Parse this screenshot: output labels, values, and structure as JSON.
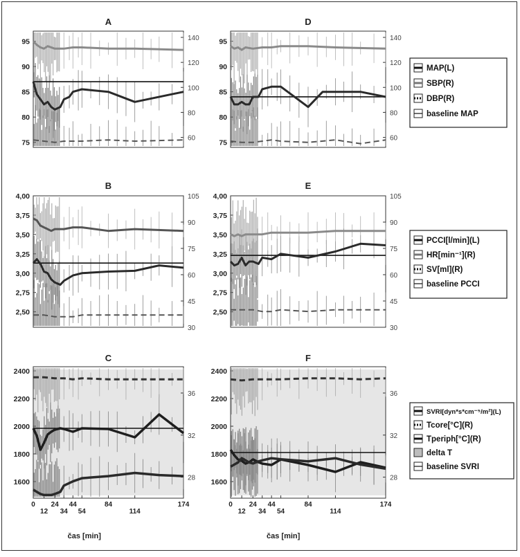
{
  "chart_data": [
    {
      "id": "A",
      "type": "line",
      "title": "A",
      "ylim": [
        74,
        97
      ],
      "y2lim": [
        52,
        145
      ],
      "yticks": [
        "75",
        "80",
        "85",
        "90",
        "95"
      ],
      "y2ticks": [
        "60",
        "80",
        "100",
        "120",
        "140"
      ],
      "x_ticks": [],
      "xlabel": "",
      "baseline": 87,
      "series": [
        {
          "key": "map",
          "axis": "left",
          "color": "#2a2a2a",
          "width": 3,
          "style": "solid",
          "x": [
            0,
            4,
            8,
            12,
            16,
            20,
            24,
            30,
            34,
            40,
            44,
            54,
            84,
            114,
            174
          ],
          "y": [
            87,
            84.5,
            83.5,
            82.5,
            83,
            82,
            81.5,
            82,
            83.5,
            84,
            85,
            85.5,
            85,
            83,
            85
          ]
        },
        {
          "key": "sbp",
          "axis": "right",
          "color": "#8a8a8a",
          "width": 3,
          "style": "solid",
          "x": [
            0,
            4,
            8,
            12,
            16,
            24,
            34,
            44,
            54,
            84,
            114,
            174
          ],
          "y": [
            137,
            134,
            132,
            131,
            133,
            131,
            131,
            132,
            132,
            131,
            131,
            130
          ]
        },
        {
          "key": "dbp",
          "axis": "right",
          "color": "#555555",
          "width": 2,
          "style": "dashed",
          "x": [
            0,
            12,
            24,
            34,
            44,
            54,
            84,
            114,
            174
          ],
          "y": [
            58,
            57,
            56,
            57,
            57,
            57,
            58,
            57,
            58
          ]
        }
      ]
    },
    {
      "id": "D",
      "type": "line",
      "title": "D",
      "ylim": [
        74,
        97
      ],
      "y2lim": [
        52,
        145
      ],
      "yticks": [
        "75",
        "80",
        "85",
        "90",
        "95"
      ],
      "y2ticks": [
        "60",
        "80",
        "100",
        "120",
        "140"
      ],
      "x_ticks": [],
      "xlabel": "",
      "baseline": 84,
      "series": [
        {
          "key": "map",
          "axis": "left",
          "color": "#2a2a2a",
          "width": 3,
          "style": "solid",
          "x": [
            0,
            4,
            8,
            12,
            16,
            20,
            24,
            30,
            34,
            44,
            54,
            84,
            100,
            114,
            144,
            174
          ],
          "y": [
            84,
            82.5,
            82.5,
            83,
            82.5,
            82.5,
            84,
            84,
            85.5,
            86,
            86,
            82,
            85,
            85,
            85,
            84
          ]
        },
        {
          "key": "sbp",
          "axis": "right",
          "color": "#8a8a8a",
          "width": 3,
          "style": "solid",
          "x": [
            0,
            4,
            8,
            12,
            16,
            24,
            34,
            44,
            54,
            84,
            114,
            174
          ],
          "y": [
            133,
            131,
            132,
            130,
            132,
            131,
            132,
            132,
            133,
            133,
            132,
            131
          ]
        },
        {
          "key": "dbp",
          "axis": "right",
          "color": "#555555",
          "width": 2,
          "style": "dashed",
          "x": [
            0,
            12,
            24,
            34,
            44,
            54,
            84,
            114,
            144,
            174
          ],
          "y": [
            57,
            56,
            56,
            57,
            58,
            57,
            56,
            58,
            55,
            58
          ]
        }
      ]
    },
    {
      "id": "B",
      "type": "line",
      "title": "B",
      "ylim": [
        2.3,
        4.0
      ],
      "y2lim": [
        30,
        105
      ],
      "yticks": [
        "2,50",
        "2,75",
        "3,00",
        "3,25",
        "3,50",
        "3,75",
        "4,00"
      ],
      "y2ticks": [
        "30",
        "45",
        "60",
        "75",
        "90",
        "105"
      ],
      "x_ticks": [],
      "xlabel": "",
      "baseline": 3.13,
      "series": [
        {
          "key": "pcci",
          "axis": "left",
          "color": "#2a2a2a",
          "width": 3,
          "style": "solid",
          "x": [
            0,
            4,
            8,
            12,
            16,
            20,
            24,
            30,
            34,
            44,
            54,
            84,
            114,
            144,
            174
          ],
          "y": [
            3.13,
            3.18,
            3.12,
            3.02,
            3.0,
            2.92,
            2.88,
            2.85,
            2.9,
            2.97,
            3.0,
            3.02,
            3.03,
            3.1,
            3.07
          ]
        },
        {
          "key": "hr",
          "axis": "right",
          "color": "#555555",
          "width": 3,
          "style": "solid",
          "x": [
            0,
            4,
            8,
            12,
            16,
            20,
            24,
            34,
            44,
            54,
            84,
            114,
            174
          ],
          "y": [
            92,
            91,
            88,
            87,
            86,
            85,
            86,
            86,
            87,
            87,
            85,
            86,
            85
          ]
        },
        {
          "key": "sv",
          "axis": "right",
          "color": "#555555",
          "width": 2,
          "style": "dashed",
          "x": [
            0,
            12,
            24,
            34,
            44,
            54,
            84,
            114,
            174
          ],
          "y": [
            37,
            37,
            36,
            36,
            36,
            37,
            37,
            37,
            37
          ]
        }
      ]
    },
    {
      "id": "E",
      "type": "line",
      "title": "E",
      "ylim": [
        2.3,
        4.0
      ],
      "y2lim": [
        30,
        105
      ],
      "yticks": [
        "2,50",
        "2,75",
        "3,00",
        "3,25",
        "3,50",
        "3,75",
        "4,00"
      ],
      "y2ticks": [
        "30",
        "45",
        "60",
        "75",
        "90",
        "105"
      ],
      "x_ticks": [],
      "xlabel": "",
      "baseline": 3.23,
      "series": [
        {
          "key": "pcci",
          "axis": "left",
          "color": "#2a2a2a",
          "width": 3,
          "style": "solid",
          "x": [
            0,
            4,
            8,
            12,
            16,
            20,
            24,
            30,
            34,
            44,
            54,
            84,
            114,
            144,
            174
          ],
          "y": [
            3.15,
            3.1,
            3.12,
            3.2,
            3.1,
            3.15,
            3.15,
            3.12,
            3.2,
            3.18,
            3.25,
            3.2,
            3.28,
            3.38,
            3.36
          ]
        },
        {
          "key": "hr",
          "axis": "right",
          "color": "#8a8a8a",
          "width": 3,
          "style": "solid",
          "x": [
            0,
            4,
            8,
            12,
            16,
            24,
            34,
            44,
            54,
            84,
            114,
            144,
            174
          ],
          "y": [
            83,
            82,
            83,
            82,
            83,
            83,
            83,
            84,
            84,
            84,
            85,
            85,
            85
          ]
        },
        {
          "key": "sv",
          "axis": "right",
          "color": "#555555",
          "width": 2,
          "style": "dashed",
          "x": [
            0,
            12,
            24,
            34,
            44,
            54,
            84,
            114,
            144,
            174
          ],
          "y": [
            40,
            40,
            40,
            39,
            39,
            40,
            39,
            40,
            40,
            40
          ]
        }
      ]
    },
    {
      "id": "C",
      "type": "line",
      "title": "C",
      "ylim": [
        1480,
        2430
      ],
      "y2lim": [
        26,
        38.5
      ],
      "yticks": [
        "1600",
        "1800",
        "2000",
        "2200",
        "2400"
      ],
      "y2ticks": [
        "28",
        "32",
        "36"
      ],
      "x_ticks": [
        "0",
        "12",
        "24",
        "34",
        "44",
        "54",
        "84",
        "114",
        "174"
      ],
      "xlabel": "čas [min]",
      "baseline": 1985,
      "delta_area": true,
      "series": [
        {
          "key": "svri",
          "axis": "left",
          "color": "#1e1e1e",
          "width": 3.5,
          "style": "solid",
          "x": [
            0,
            4,
            8,
            12,
            16,
            20,
            24,
            30,
            34,
            44,
            54,
            84,
            114,
            144,
            174
          ],
          "y": [
            1985,
            1930,
            1830,
            1880,
            1940,
            1960,
            1975,
            1985,
            1980,
            1960,
            1985,
            1980,
            1920,
            2085,
            1950
          ]
        },
        {
          "key": "tcore",
          "axis": "right",
          "color": "#333333",
          "width": 3,
          "style": "dashed",
          "x": [
            0,
            12,
            24,
            34,
            44,
            54,
            84,
            114,
            144,
            174
          ],
          "y": [
            37.5,
            37.5,
            37.4,
            37.4,
            37.3,
            37.4,
            37.3,
            37.3,
            37.3,
            37.3
          ]
        },
        {
          "key": "tperiph",
          "axis": "right",
          "color": "#2a2a2a",
          "width": 3.5,
          "style": "solid",
          "x": [
            0,
            4,
            8,
            12,
            16,
            20,
            24,
            30,
            34,
            44,
            54,
            84,
            114,
            144,
            174
          ],
          "y": [
            26.8,
            26.6,
            26.4,
            26.3,
            26.3,
            26.3,
            26.4,
            26.6,
            27.2,
            27.6,
            27.9,
            28.1,
            28.4,
            28.2,
            28.1
          ]
        }
      ]
    },
    {
      "id": "F",
      "type": "line",
      "title": "F",
      "ylim": [
        1480,
        2430
      ],
      "y2lim": [
        26,
        38.5
      ],
      "yticks": [
        "1600",
        "1800",
        "2000",
        "2200",
        "2400"
      ],
      "y2ticks": [
        "28",
        "32",
        "36"
      ],
      "x_ticks": [
        "0",
        "12",
        "24",
        "34",
        "44",
        "54",
        "84",
        "114",
        "174"
      ],
      "xlabel": "čas [min]",
      "baseline": 1810,
      "delta_area": true,
      "series": [
        {
          "key": "svri",
          "axis": "left",
          "color": "#1e1e1e",
          "width": 3.5,
          "style": "solid",
          "x": [
            0,
            4,
            8,
            12,
            16,
            20,
            24,
            30,
            34,
            44,
            54,
            84,
            114,
            144,
            174
          ],
          "y": [
            1830,
            1790,
            1760,
            1750,
            1730,
            1740,
            1760,
            1740,
            1730,
            1720,
            1760,
            1720,
            1670,
            1740,
            1700
          ]
        },
        {
          "key": "tcore",
          "axis": "right",
          "color": "#333333",
          "width": 3,
          "style": "dashed",
          "x": [
            0,
            12,
            24,
            34,
            44,
            54,
            84,
            114,
            144,
            174
          ],
          "y": [
            37.3,
            37.2,
            37.3,
            37.3,
            37.3,
            37.3,
            37.4,
            37.4,
            37.3,
            37.4
          ]
        },
        {
          "key": "tperiph",
          "axis": "right",
          "color": "#2a2a2a",
          "width": 3.5,
          "style": "solid",
          "x": [
            0,
            4,
            8,
            12,
            16,
            20,
            24,
            30,
            34,
            44,
            54,
            84,
            114,
            144,
            174
          ],
          "y": [
            29.0,
            29.2,
            29.4,
            29.8,
            29.6,
            29.4,
            29.3,
            29.5,
            29.6,
            29.8,
            29.7,
            29.5,
            29.8,
            29.2,
            28.8
          ]
        }
      ]
    }
  ],
  "legends": [
    {
      "id": "legend-pressure",
      "entries": [
        {
          "label": "MAP(L)",
          "swatch": "solid"
        },
        {
          "label": "SBP(R)",
          "swatch": "gray"
        },
        {
          "label": "DBP(R)",
          "swatch": "dotted"
        },
        {
          "label": "baseline MAP",
          "swatch": "thin"
        }
      ]
    },
    {
      "id": "legend-flow",
      "entries": [
        {
          "label": "PCCI[l/min](L)",
          "swatch": "solid"
        },
        {
          "label": "HR[min⁻¹](R)",
          "swatch": "gray"
        },
        {
          "label": "SV[ml](R)",
          "swatch": "dotted"
        },
        {
          "label": "baseline PCCI",
          "swatch": "thin"
        }
      ]
    },
    {
      "id": "legend-resistance",
      "entries": [
        {
          "label": "SVRI[dyn*s*cm⁻⁵/m²](L)",
          "swatch": "solid"
        },
        {
          "label": "Tcore[°C](R)",
          "swatch": "dotted"
        },
        {
          "label": "Tperiph[°C](R)",
          "swatch": "solid"
        },
        {
          "label": "delta T",
          "swatch": "area"
        },
        {
          "label": "baseline SVRI",
          "swatch": "thin"
        }
      ]
    }
  ]
}
